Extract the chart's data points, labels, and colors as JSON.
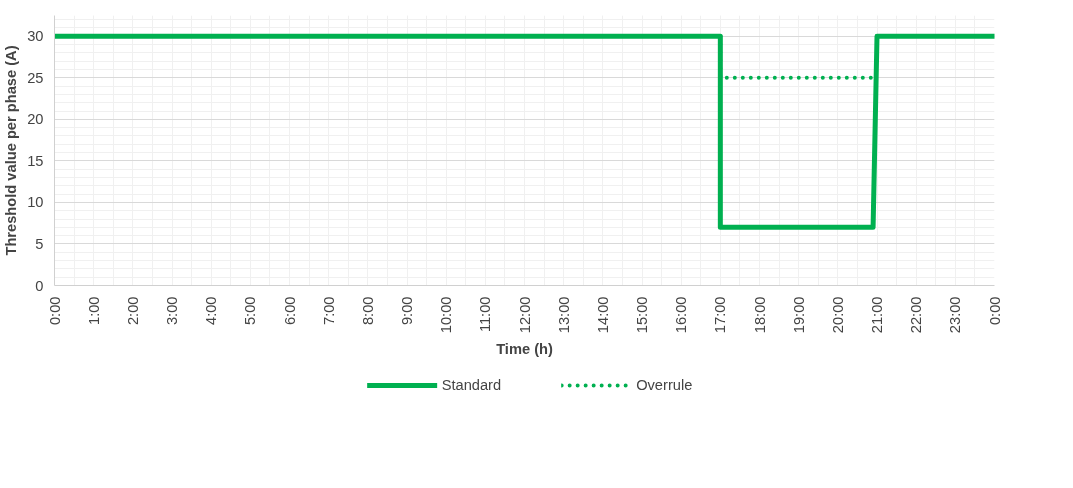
{
  "chart_data": {
    "type": "line",
    "xlabel": "Time (h)",
    "ylabel": "Threshold value per phase (A)",
    "xlim": [
      0,
      24
    ],
    "ylim": [
      0,
      32.5
    ],
    "xticks": [
      {
        "value": 0,
        "label": "0:00"
      },
      {
        "value": 1,
        "label": "1:00"
      },
      {
        "value": 2,
        "label": "2:00"
      },
      {
        "value": 3,
        "label": "3:00"
      },
      {
        "value": 4,
        "label": "4:00"
      },
      {
        "value": 5,
        "label": "5:00"
      },
      {
        "value": 6,
        "label": "6:00"
      },
      {
        "value": 7,
        "label": "7:00"
      },
      {
        "value": 8,
        "label": "8:00"
      },
      {
        "value": 9,
        "label": "9:00"
      },
      {
        "value": 10,
        "label": "10:00"
      },
      {
        "value": 11,
        "label": "11:00"
      },
      {
        "value": 12,
        "label": "12:00"
      },
      {
        "value": 13,
        "label": "13:00"
      },
      {
        "value": 14,
        "label": "14:00"
      },
      {
        "value": 15,
        "label": "15:00"
      },
      {
        "value": 16,
        "label": "16:00"
      },
      {
        "value": 17,
        "label": "17:00"
      },
      {
        "value": 18,
        "label": "18:00"
      },
      {
        "value": 19,
        "label": "19:00"
      },
      {
        "value": 20,
        "label": "20:00"
      },
      {
        "value": 21,
        "label": "21:00"
      },
      {
        "value": 22,
        "label": "22:00"
      },
      {
        "value": 23,
        "label": "23:00"
      },
      {
        "value": 24,
        "label": "0:00"
      }
    ],
    "yticks": [
      0,
      5,
      10,
      15,
      20,
      25,
      30
    ],
    "grid": true,
    "legend": "bottom",
    "marker": "none",
    "series": [
      {
        "name": "Standard",
        "color": "#00b050",
        "line_style": "solid",
        "x": [
          0,
          17,
          17,
          20.9,
          21,
          24
        ],
        "values": [
          30,
          30,
          7,
          7,
          30,
          30
        ]
      },
      {
        "name": "Overrule",
        "color": "#00b050",
        "line_style": "dotted",
        "x": [
          17,
          17,
          20.9
        ],
        "values": [
          30,
          25,
          25
        ]
      }
    ]
  }
}
